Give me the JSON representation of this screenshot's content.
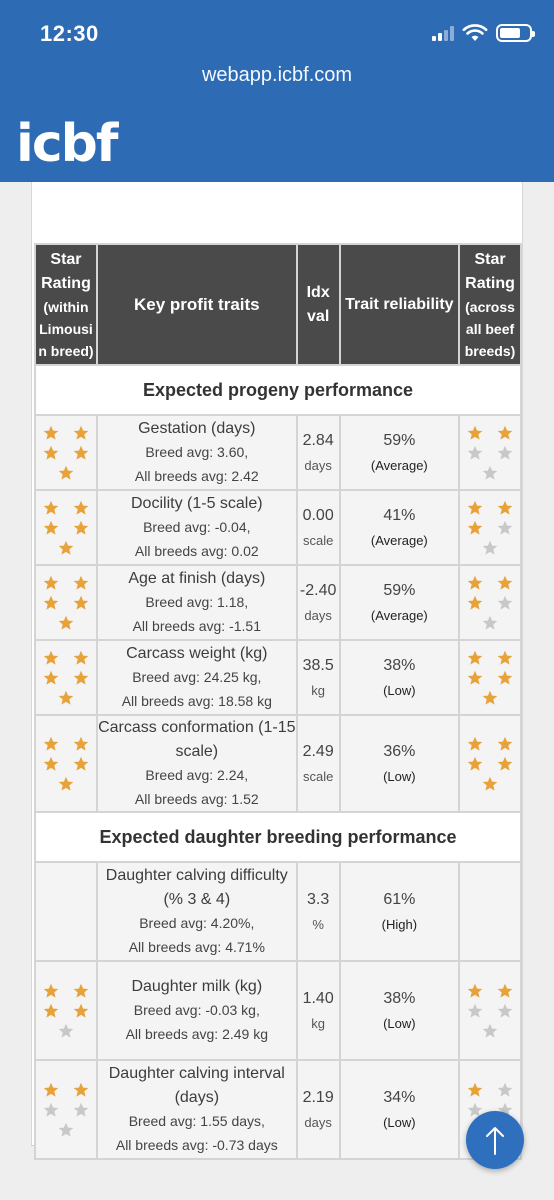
{
  "status": {
    "time": "12:30"
  },
  "browser": {
    "url": "webapp.icbf.com"
  },
  "brand": {
    "logo": "icbf"
  },
  "table": {
    "headers": {
      "star_within_title": "Star Rating",
      "star_within_sub": "(within Limousi n breed)",
      "key_traits": "Key profit traits",
      "idx_val": "Idx val",
      "reliability": "Trait reliability",
      "star_across_title": "Star Rating",
      "star_across_sub": "(across all beef breeds)"
    },
    "sections": [
      {
        "title": "Expected progeny performance",
        "rows": [
          {
            "name": "Gestation (days)",
            "breed_avg": "Breed avg: 3.60,",
            "all_avg": "All breeds avg: 2.42",
            "idx": "2.84",
            "unit": "days",
            "rel": "59%",
            "level": "(Average)",
            "stars_within": 5,
            "stars_across": 2
          },
          {
            "name": "Docility (1-5 scale)",
            "breed_avg": "Breed avg: -0.04,",
            "all_avg": "All breeds avg: 0.02",
            "idx": "0.00",
            "unit": "scale",
            "rel": "41%",
            "level": "(Average)",
            "stars_within": 5,
            "stars_across": 3
          },
          {
            "name": "Age at finish (days)",
            "breed_avg": "Breed avg: 1.18,",
            "all_avg": "All breeds avg: -1.51",
            "idx": "-2.40",
            "unit": "days",
            "rel": "59%",
            "level": "(Average)",
            "stars_within": 5,
            "stars_across": 3
          },
          {
            "name": "Carcass weight (kg)",
            "breed_avg": "Breed avg: 24.25 kg,",
            "all_avg": "All breeds avg: 18.58 kg",
            "idx": "38.5",
            "unit": "kg",
            "rel": "38%",
            "level": "(Low)",
            "stars_within": 5,
            "stars_across": 5
          },
          {
            "name": "Carcass conformation (1-15 scale)",
            "breed_avg": "Breed avg: 2.24,",
            "all_avg": "All breeds avg: 1.52",
            "idx": "2.49",
            "unit": "scale",
            "rel": "36%",
            "level": "(Low)",
            "stars_within": 5,
            "stars_across": 5
          }
        ]
      },
      {
        "title": "Expected daughter breeding performance",
        "rows": [
          {
            "name": "Daughter calving difficulty (% 3 & 4)",
            "breed_avg": "Breed avg: 4.20%,",
            "all_avg": "All breeds avg: 4.71%",
            "idx": "3.3",
            "unit": "%",
            "rel": "61%",
            "level": "(High)",
            "stars_within": 0,
            "stars_across": 0
          },
          {
            "name": "Daughter milk (kg)",
            "breed_avg": "Breed avg: -0.03 kg,",
            "all_avg": "All breeds avg: 2.49 kg",
            "idx": "1.40",
            "unit": "kg",
            "rel": "38%",
            "level": "(Low)",
            "stars_within": 4,
            "stars_across": 2
          },
          {
            "name": "Daughter calving interval (days)",
            "breed_avg": "Breed avg: 1.55 days,",
            "all_avg": "All breeds avg: -0.73 days",
            "idx": "2.19",
            "unit": "days",
            "rel": "34%",
            "level": "(Low)",
            "stars_within": 2,
            "stars_across": 1
          }
        ]
      }
    ]
  },
  "colors": {
    "header_blue": "#2d6bb5",
    "star_gold": "#e8a23a",
    "star_empty": "#c8c8c8",
    "table_header": "#4a4a4a"
  },
  "icons": {
    "scroll_top": "arrow-up-icon"
  }
}
